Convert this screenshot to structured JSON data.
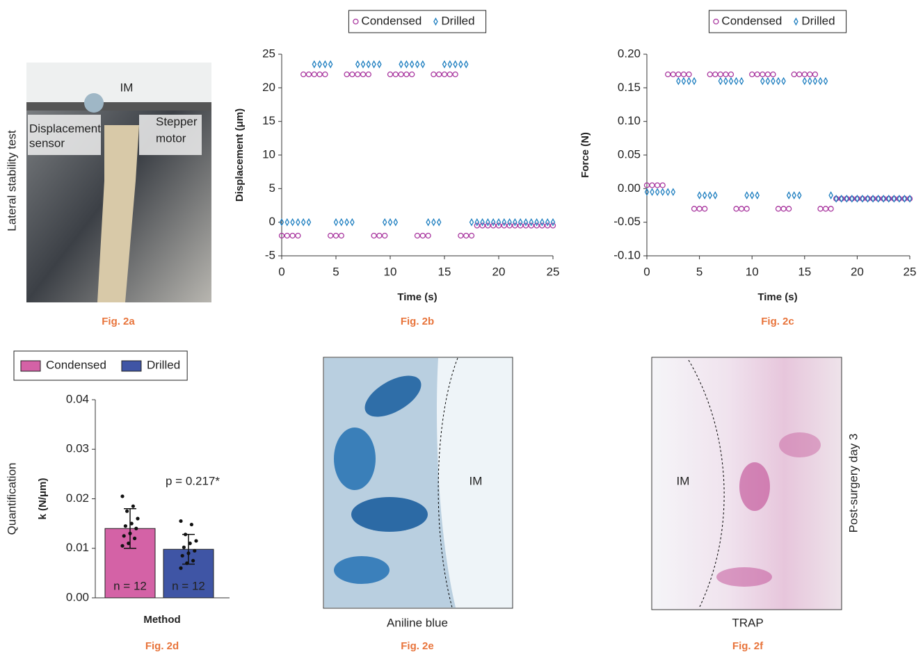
{
  "chart_data": [
    {
      "type": "scatter",
      "caption": "Fig. 2b",
      "x_label": "Time (s)",
      "y_label": "Displacement (μm)",
      "x": [
        0,
        0.5,
        1,
        1.5,
        2,
        2.5,
        3,
        3.5,
        4,
        4.5,
        5,
        5.5,
        6,
        6.5,
        7,
        7.5,
        8,
        8.5,
        9,
        9.5,
        10,
        10.5,
        11,
        11.5,
        12,
        12.5,
        13,
        13.5,
        14,
        14.5,
        15,
        15.5,
        16,
        16.5,
        17,
        17.5,
        18,
        18.5,
        19,
        19.5,
        20,
        20.5,
        21,
        21.5,
        22,
        22.5,
        23,
        23.5,
        24,
        24.5,
        25
      ],
      "series": [
        {
          "name": "Condensed",
          "color": "#a8359e",
          "marker": "circle",
          "values": [
            -2,
            -2,
            -2,
            -2,
            22,
            22,
            22,
            22,
            22,
            -2,
            -2,
            -2,
            22,
            22,
            22,
            22,
            22,
            -2,
            -2,
            -2,
            22,
            22,
            22,
            22,
            22,
            -2,
            -2,
            -2,
            22,
            22,
            22,
            22,
            22,
            -2,
            -2,
            -2,
            -0.5,
            -0.5,
            -0.5,
            -0.5,
            -0.5,
            -0.5,
            -0.5,
            -0.5,
            -0.5,
            -0.5,
            -0.5,
            -0.5,
            -0.5,
            -0.5,
            -0.5
          ]
        },
        {
          "name": "Drilled",
          "color": "#1f7fc0",
          "marker": "diamond",
          "values": [
            0,
            0,
            0,
            0,
            0,
            0,
            23.5,
            23.5,
            23.5,
            23.5,
            0,
            0,
            0,
            0,
            23.5,
            23.5,
            23.5,
            23.5,
            23.5,
            0,
            0,
            0,
            23.5,
            23.5,
            23.5,
            23.5,
            23.5,
            0,
            0,
            0,
            23.5,
            23.5,
            23.5,
            23.5,
            23.5,
            0,
            0,
            0,
            0,
            0,
            0,
            0,
            0,
            0,
            0,
            0,
            0,
            0,
            0,
            0,
            0
          ]
        }
      ],
      "xlim": [
        0,
        25
      ],
      "xticks": [
        0,
        5,
        10,
        15,
        20,
        25
      ],
      "ylim": [
        -5,
        25
      ],
      "yticks": [
        -5,
        0,
        5,
        10,
        15,
        20,
        25
      ]
    },
    {
      "type": "scatter",
      "caption": "Fig. 2c",
      "x_label": "Time (s)",
      "y_label": "Force (N)",
      "x": [
        0,
        0.5,
        1,
        1.5,
        2,
        2.5,
        3,
        3.5,
        4,
        4.5,
        5,
        5.5,
        6,
        6.5,
        7,
        7.5,
        8,
        8.5,
        9,
        9.5,
        10,
        10.5,
        11,
        11.5,
        12,
        12.5,
        13,
        13.5,
        14,
        14.5,
        15,
        15.5,
        16,
        16.5,
        17,
        17.5,
        18,
        18.5,
        19,
        19.5,
        20,
        20.5,
        21,
        21.5,
        22,
        22.5,
        23,
        23.5,
        24,
        24.5,
        25
      ],
      "series": [
        {
          "name": "Condensed",
          "color": "#a8359e",
          "marker": "circle",
          "values": [
            0.005,
            0.005,
            0.005,
            0.005,
            0.17,
            0.17,
            0.17,
            0.17,
            0.17,
            -0.03,
            -0.03,
            -0.03,
            0.17,
            0.17,
            0.17,
            0.17,
            0.17,
            -0.03,
            -0.03,
            -0.03,
            0.17,
            0.17,
            0.17,
            0.17,
            0.17,
            -0.03,
            -0.03,
            -0.03,
            0.17,
            0.17,
            0.17,
            0.17,
            0.17,
            -0.03,
            -0.03,
            -0.03,
            -0.015,
            -0.015,
            -0.015,
            -0.015,
            -0.015,
            -0.015,
            -0.015,
            -0.015,
            -0.015,
            -0.015,
            -0.015,
            -0.015,
            -0.015,
            -0.015,
            -0.015
          ]
        },
        {
          "name": "Drilled",
          "color": "#1f7fc0",
          "marker": "diamond",
          "values": [
            -0.005,
            -0.005,
            -0.005,
            -0.005,
            -0.005,
            -0.005,
            0.16,
            0.16,
            0.16,
            0.16,
            -0.01,
            -0.01,
            -0.01,
            -0.01,
            0.16,
            0.16,
            0.16,
            0.16,
            0.16,
            -0.01,
            -0.01,
            -0.01,
            0.16,
            0.16,
            0.16,
            0.16,
            0.16,
            -0.01,
            -0.01,
            -0.01,
            0.16,
            0.16,
            0.16,
            0.16,
            0.16,
            -0.01,
            -0.015,
            -0.015,
            -0.015,
            -0.015,
            -0.015,
            -0.015,
            -0.015,
            -0.015,
            -0.015,
            -0.015,
            -0.015,
            -0.015,
            -0.015,
            -0.015,
            -0.015
          ]
        }
      ],
      "xlim": [
        0,
        25
      ],
      "xticks": [
        0,
        5,
        10,
        15,
        20,
        25
      ],
      "ylim": [
        -0.1,
        0.2
      ],
      "yticks": [
        {
          "value": -0.1,
          "label": "-0.10"
        },
        -0.05,
        {
          "value": 0,
          "label": "0.00"
        },
        0.05,
        {
          "value": 0.1,
          "label": "0.10"
        },
        0.15,
        {
          "value": 0.2,
          "label": "0.20"
        }
      ]
    },
    {
      "type": "bar",
      "caption": "Fig. 2d",
      "x_label": "Method",
      "y_label": "k (N/μm)",
      "y_group_label": "Quantification",
      "annotation": "p = 0.217*",
      "series": [
        {
          "name": "Condensed",
          "color": "#d462a6",
          "values": [
            0.014
          ],
          "errors": [
            0.004
          ],
          "label": "n = 12",
          "points": [
            0.0205,
            0.0185,
            0.0175,
            0.016,
            0.015,
            0.0145,
            0.014,
            0.013,
            0.0125,
            0.012,
            0.011,
            0.0105
          ]
        },
        {
          "name": "Drilled",
          "color": "#3f55a5",
          "values": [
            0.0098
          ],
          "errors": [
            0.003
          ],
          "label": "n = 12",
          "points": [
            0.0155,
            0.0148,
            0.0128,
            0.0115,
            0.011,
            0.0102,
            0.0095,
            0.009,
            0.0085,
            0.0075,
            0.007,
            0.006
          ]
        }
      ],
      "ylim": [
        0,
        0.04
      ],
      "yticks": [
        {
          "value": 0,
          "label": "0.00"
        },
        0.01,
        0.02,
        0.03,
        0.04
      ]
    }
  ],
  "panels": {
    "a": {
      "side_label": "Lateral stability test",
      "im": "IM",
      "sensor": [
        "Displacement",
        "sensor"
      ],
      "motor": [
        "Stepper",
        "motor"
      ],
      "caption": "Fig. 2a"
    },
    "e": {
      "im": "IM",
      "stain": "Aniline blue",
      "caption": "Fig. 2e"
    },
    "f": {
      "im": "IM",
      "stain": "TRAP",
      "side_label": "Post-surgery day 3",
      "caption": "Fig. 2f"
    }
  }
}
